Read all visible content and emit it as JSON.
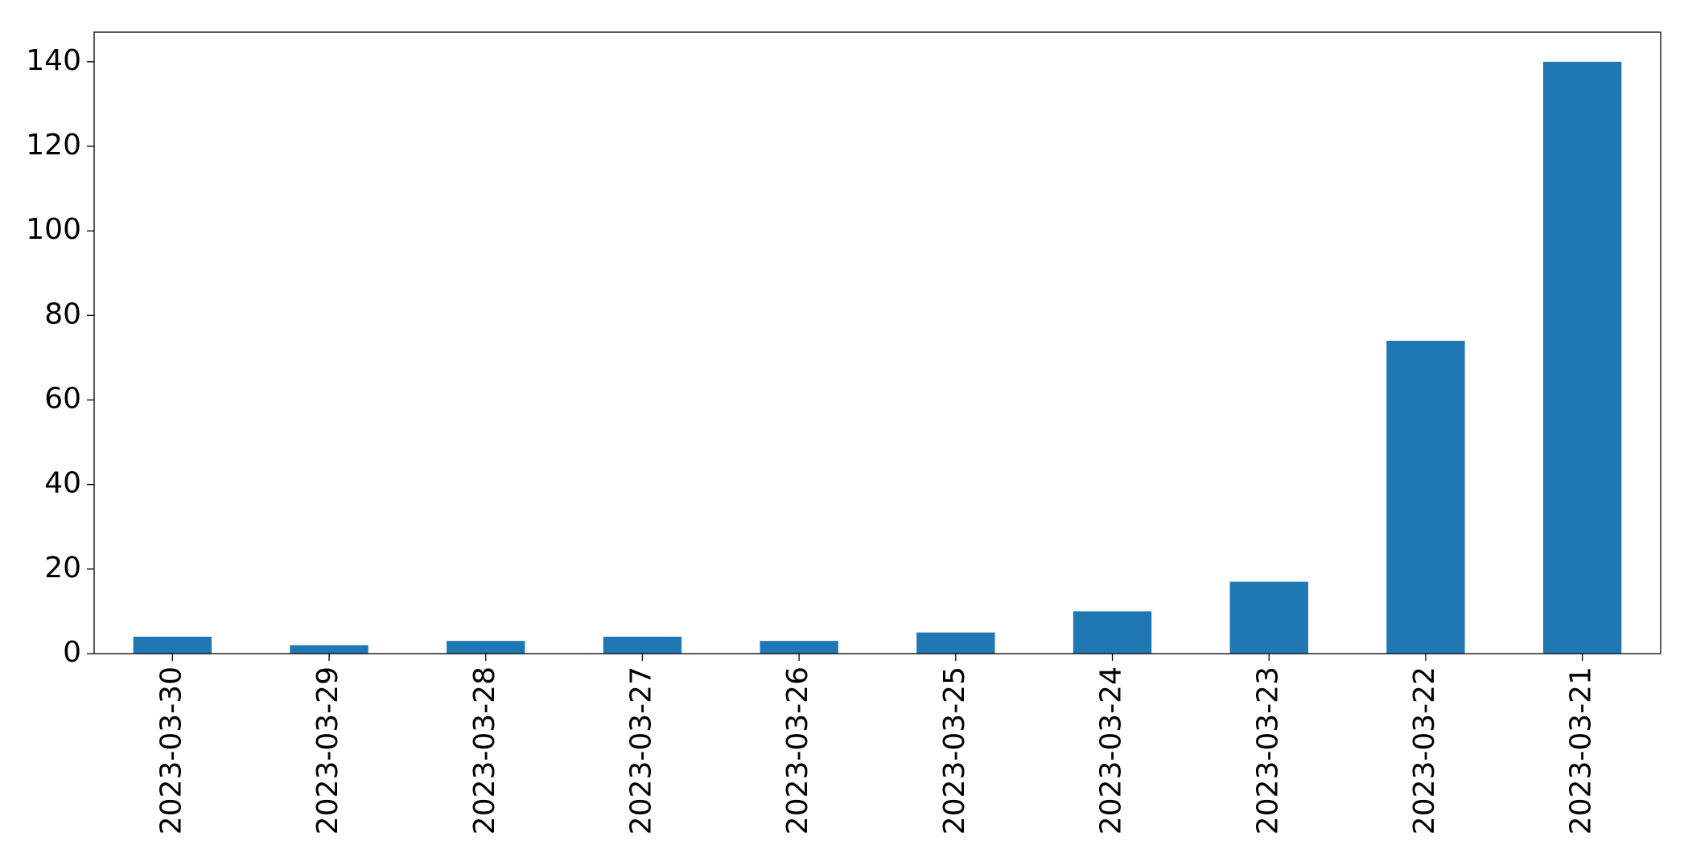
{
  "chart_data": {
    "type": "bar",
    "categories": [
      "2023-03-30",
      "2023-03-29",
      "2023-03-28",
      "2023-03-27",
      "2023-03-26",
      "2023-03-25",
      "2023-03-24",
      "2023-03-23",
      "2023-03-22",
      "2023-03-21"
    ],
    "values": [
      4,
      2,
      3,
      4,
      3,
      5,
      10,
      17,
      74,
      140
    ],
    "color": "#1f77b4",
    "ylim": [
      0,
      147
    ],
    "yticks": [
      0,
      20,
      40,
      60,
      80,
      100,
      120,
      140
    ],
    "grid": false
  }
}
